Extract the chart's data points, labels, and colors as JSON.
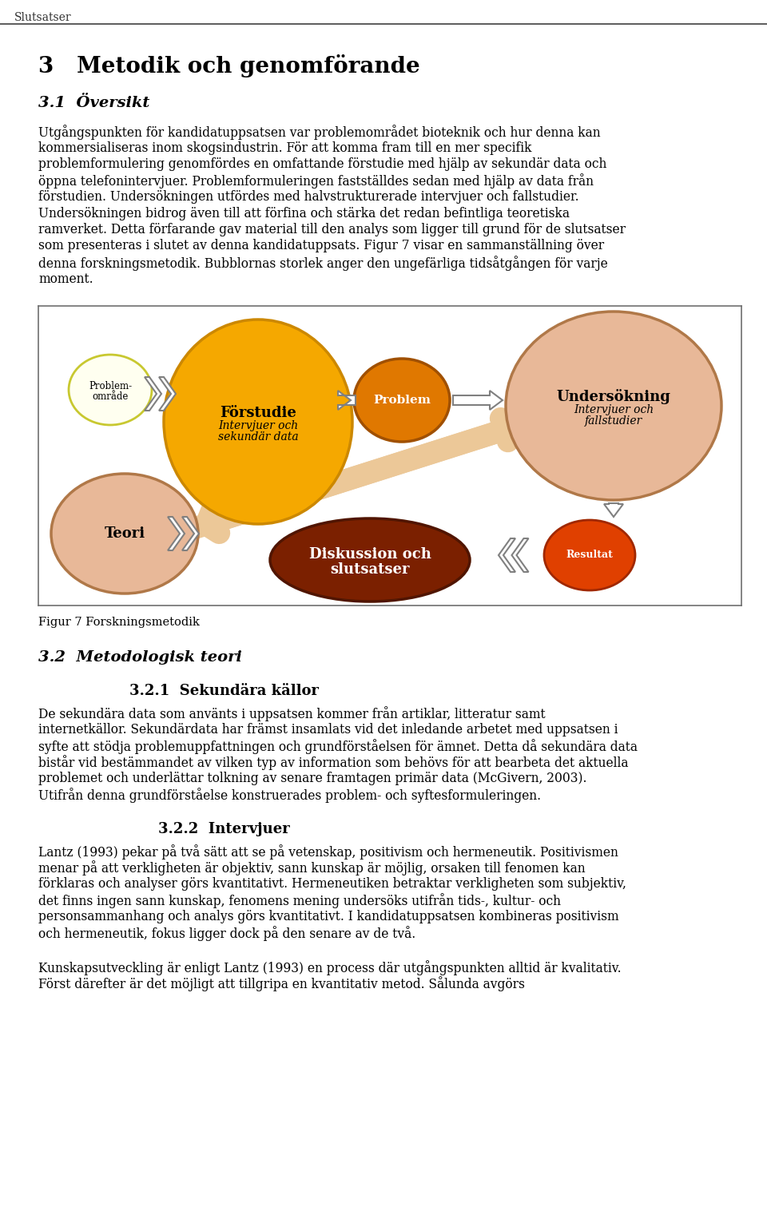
{
  "page_title": "Slutsatser",
  "section_title": "3   Metodik och genomförande",
  "subsection_title": "3.1  Översikt",
  "fig_caption": "Figur 7 Forskningsmetodik",
  "section32_title": "3.2  Metodologisk teori",
  "section321_title": "3.2.1  Sekundära källor",
  "section322_title": "3.2.2  Intervjuer",
  "background_color": "#ffffff",
  "ellipse_forstudie_color": "#F5A800",
  "ellipse_forstudie_edge": "#CC8800",
  "ellipse_problem_color": "#E07800",
  "ellipse_problem_edge": "#A05000",
  "ellipse_undersokning_color": "#E8B898",
  "ellipse_undersokning_edge": "#B07848",
  "ellipse_problemomrade_color": "#FFFFF0",
  "ellipse_problemomrade_edge": "#C8C830",
  "ellipse_teori_color": "#E8B898",
  "ellipse_teori_edge": "#B07848",
  "ellipse_diskussion_color": "#7B2000",
  "ellipse_diskussion_edge": "#501500",
  "ellipse_resultat_color": "#E04000",
  "ellipse_resultat_edge": "#A02800",
  "arrow_peach_color": "#ECC898",
  "arrow_white_color": "#FFFFFF",
  "arrow_outline_color": "#808080",
  "line_color": "#404040"
}
